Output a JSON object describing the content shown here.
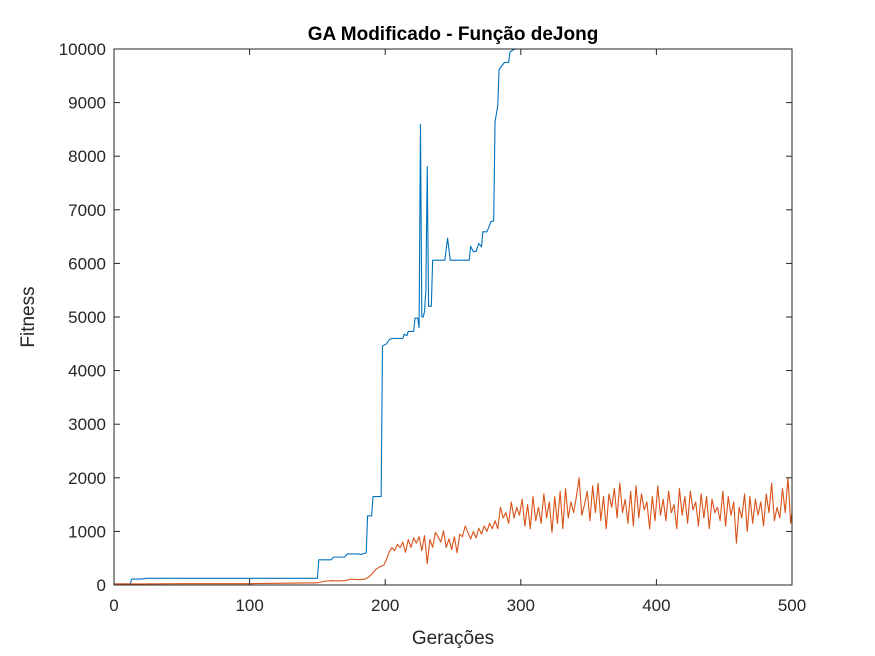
{
  "chart_data": {
    "type": "line",
    "title": "GA Modificado - Função deJong",
    "xlabel": "Gerações",
    "ylabel": "Fitness",
    "xlim": [
      0,
      500
    ],
    "ylim": [
      0,
      10000
    ],
    "xticks": [
      0,
      100,
      200,
      300,
      400,
      500
    ],
    "yticks": [
      0,
      1000,
      2000,
      3000,
      4000,
      5000,
      6000,
      7000,
      8000,
      9000,
      10000
    ],
    "grid": false,
    "legend": "none",
    "series": [
      {
        "color": "#0072BD",
        "points": [
          [
            0,
            20
          ],
          [
            12,
            20
          ],
          [
            13,
            110
          ],
          [
            20,
            110
          ],
          [
            24,
            125
          ],
          [
            100,
            125
          ],
          [
            150,
            125
          ],
          [
            151,
            470
          ],
          [
            160,
            470
          ],
          [
            162,
            520
          ],
          [
            170,
            520
          ],
          [
            172,
            580
          ],
          [
            180,
            580
          ],
          [
            182,
            570
          ],
          [
            186,
            600
          ],
          [
            187,
            1290
          ],
          [
            190,
            1290
          ],
          [
            191,
            1650
          ],
          [
            197,
            1650
          ],
          [
            198,
            4460
          ],
          [
            201,
            4500
          ],
          [
            203,
            4580
          ],
          [
            205,
            4600
          ],
          [
            213,
            4600
          ],
          [
            214,
            4680
          ],
          [
            216,
            4650
          ],
          [
            217,
            4730
          ],
          [
            221,
            4730
          ],
          [
            222,
            4980
          ],
          [
            224,
            4980
          ],
          [
            225,
            4800
          ],
          [
            226,
            8590
          ],
          [
            227,
            5000
          ],
          [
            228,
            5000
          ],
          [
            229,
            5100
          ],
          [
            230,
            5500
          ],
          [
            231,
            7810
          ],
          [
            232,
            5200
          ],
          [
            234,
            5200
          ],
          [
            235,
            6060
          ],
          [
            243,
            6060
          ],
          [
            244,
            6060
          ],
          [
            246,
            6470
          ],
          [
            248,
            6060
          ],
          [
            262,
            6060
          ],
          [
            263,
            6320
          ],
          [
            265,
            6220
          ],
          [
            267,
            6220
          ],
          [
            269,
            6370
          ],
          [
            271,
            6310
          ],
          [
            272,
            6590
          ],
          [
            275,
            6590
          ],
          [
            276,
            6650
          ],
          [
            278,
            6780
          ],
          [
            280,
            6790
          ],
          [
            281,
            8640
          ],
          [
            283,
            8940
          ],
          [
            284,
            9620
          ],
          [
            288,
            9750
          ],
          [
            291,
            9750
          ],
          [
            292,
            9940
          ],
          [
            294,
            9980
          ],
          [
            296,
            10000
          ],
          [
            500,
            10000
          ]
        ]
      },
      {
        "color": "#D95319",
        "points": [
          [
            0,
            20
          ],
          [
            20,
            20
          ],
          [
            50,
            25
          ],
          [
            100,
            25
          ],
          [
            150,
            40
          ],
          [
            155,
            70
          ],
          [
            160,
            80
          ],
          [
            165,
            75
          ],
          [
            170,
            80
          ],
          [
            175,
            110
          ],
          [
            180,
            100
          ],
          [
            185,
            110
          ],
          [
            188,
            150
          ],
          [
            190,
            200
          ],
          [
            193,
            290
          ],
          [
            196,
            340
          ],
          [
            199,
            370
          ],
          [
            201,
            480
          ],
          [
            203,
            620
          ],
          [
            205,
            700
          ],
          [
            207,
            640
          ],
          [
            209,
            760
          ],
          [
            211,
            700
          ],
          [
            213,
            800
          ],
          [
            215,
            610
          ],
          [
            217,
            850
          ],
          [
            219,
            700
          ],
          [
            221,
            880
          ],
          [
            223,
            780
          ],
          [
            225,
            900
          ],
          [
            227,
            640
          ],
          [
            229,
            920
          ],
          [
            231,
            400
          ],
          [
            233,
            850
          ],
          [
            235,
            700
          ],
          [
            237,
            980
          ],
          [
            239,
            900
          ],
          [
            241,
            800
          ],
          [
            243,
            1010
          ],
          [
            245,
            700
          ],
          [
            247,
            860
          ],
          [
            249,
            660
          ],
          [
            251,
            900
          ],
          [
            253,
            600
          ],
          [
            255,
            950
          ],
          [
            257,
            900
          ],
          [
            259,
            1100
          ],
          [
            261,
            980
          ],
          [
            263,
            860
          ],
          [
            265,
            1000
          ],
          [
            267,
            880
          ],
          [
            269,
            1060
          ],
          [
            271,
            950
          ],
          [
            273,
            1100
          ],
          [
            275,
            1000
          ],
          [
            277,
            1150
          ],
          [
            279,
            1050
          ],
          [
            281,
            1200
          ],
          [
            283,
            1050
          ],
          [
            285,
            1450
          ],
          [
            287,
            1250
          ],
          [
            289,
            1350
          ],
          [
            291,
            1150
          ],
          [
            293,
            1550
          ],
          [
            295,
            1250
          ],
          [
            297,
            1450
          ],
          [
            299,
            1300
          ],
          [
            301,
            1600
          ],
          [
            303,
            1100
          ],
          [
            305,
            1500
          ],
          [
            307,
            1050
          ],
          [
            309,
            1650
          ],
          [
            311,
            1200
          ],
          [
            313,
            1450
          ],
          [
            315,
            1150
          ],
          [
            317,
            1700
          ],
          [
            319,
            1250
          ],
          [
            321,
            1550
          ],
          [
            323,
            980
          ],
          [
            325,
            1650
          ],
          [
            327,
            1150
          ],
          [
            329,
            1750
          ],
          [
            331,
            1050
          ],
          [
            333,
            1800
          ],
          [
            335,
            1250
          ],
          [
            337,
            1550
          ],
          [
            339,
            1350
          ],
          [
            341,
            1650
          ],
          [
            343,
            2000
          ],
          [
            345,
            1300
          ],
          [
            347,
            1500
          ],
          [
            349,
            1750
          ],
          [
            351,
            1200
          ],
          [
            353,
            1850
          ],
          [
            355,
            1350
          ],
          [
            357,
            1900
          ],
          [
            359,
            1200
          ],
          [
            361,
            1650
          ],
          [
            363,
            1050
          ],
          [
            365,
            1700
          ],
          [
            367,
            1450
          ],
          [
            369,
            1800
          ],
          [
            371,
            1250
          ],
          [
            373,
            1900
          ],
          [
            375,
            1350
          ],
          [
            377,
            1600
          ],
          [
            379,
            1150
          ],
          [
            381,
            1750
          ],
          [
            383,
            1100
          ],
          [
            385,
            1850
          ],
          [
            387,
            1250
          ],
          [
            389,
            1700
          ],
          [
            391,
            1400
          ],
          [
            393,
            1550
          ],
          [
            395,
            1050
          ],
          [
            397,
            1650
          ],
          [
            399,
            1200
          ],
          [
            401,
            1850
          ],
          [
            403,
            1300
          ],
          [
            405,
            1600
          ],
          [
            407,
            1200
          ],
          [
            409,
            1750
          ],
          [
            411,
            1350
          ],
          [
            413,
            1500
          ],
          [
            415,
            1050
          ],
          [
            417,
            1800
          ],
          [
            419,
            1300
          ],
          [
            421,
            1650
          ],
          [
            423,
            1150
          ],
          [
            425,
            1750
          ],
          [
            427,
            1400
          ],
          [
            429,
            1550
          ],
          [
            431,
            1100
          ],
          [
            433,
            1700
          ],
          [
            435,
            1250
          ],
          [
            437,
            1650
          ],
          [
            439,
            1050
          ],
          [
            441,
            1600
          ],
          [
            443,
            1350
          ],
          [
            445,
            1450
          ],
          [
            447,
            1200
          ],
          [
            449,
            1750
          ],
          [
            451,
            1100
          ],
          [
            453,
            1650
          ],
          [
            455,
            1300
          ],
          [
            457,
            1550
          ],
          [
            459,
            780
          ],
          [
            461,
            1450
          ],
          [
            463,
            1250
          ],
          [
            465,
            1700
          ],
          [
            467,
            1000
          ],
          [
            469,
            1650
          ],
          [
            471,
            1150
          ],
          [
            473,
            1600
          ],
          [
            475,
            1300
          ],
          [
            477,
            1550
          ],
          [
            479,
            1100
          ],
          [
            481,
            1700
          ],
          [
            483,
            1350
          ],
          [
            485,
            1900
          ],
          [
            487,
            1200
          ],
          [
            489,
            1450
          ],
          [
            491,
            1250
          ],
          [
            493,
            1800
          ],
          [
            495,
            1350
          ],
          [
            497,
            2000
          ],
          [
            498,
            1600
          ],
          [
            499,
            1150
          ],
          [
            500,
            1350
          ]
        ]
      }
    ]
  }
}
